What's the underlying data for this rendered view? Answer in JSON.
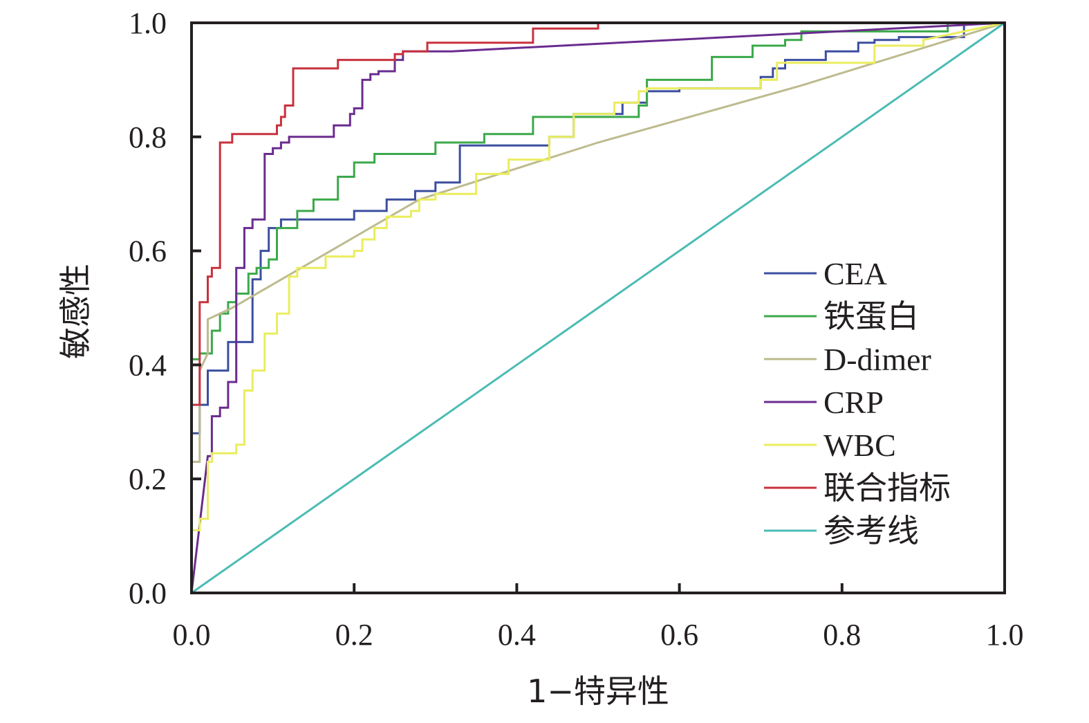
{
  "chart_data": {
    "type": "line",
    "title": "",
    "xlabel": "1−特异性",
    "ylabel": "敏感性",
    "xlim": [
      0,
      1
    ],
    "ylim": [
      0,
      1
    ],
    "xticks": [
      "0.0",
      "0.2",
      "0.4",
      "0.6",
      "0.8",
      "1.0"
    ],
    "yticks": [
      "0.0",
      "0.2",
      "0.4",
      "0.6",
      "0.8",
      "1.0"
    ],
    "grid": false,
    "legend_position": "bottom-right",
    "series": [
      {
        "name": "CEA",
        "color": "#3b4ea0",
        "x": [
          0,
          0,
          0.01,
          0.01,
          0.02,
          0.02,
          0.045,
          0.045,
          0.065,
          0.065,
          0.075,
          0.075,
          0.085,
          0.085,
          0.095,
          0.095,
          0.11,
          0.11,
          0.2,
          0.2,
          0.24,
          0.24,
          0.275,
          0.275,
          0.3,
          0.3,
          0.33,
          0.33,
          0.44,
          0.44,
          0.47,
          0.47,
          0.53,
          0.53,
          0.56,
          0.56,
          0.6,
          0.6,
          0.7,
          0.7,
          0.715,
          0.715,
          0.73,
          0.73,
          0.78,
          0.78,
          0.82,
          0.82,
          0.84,
          0.84,
          0.87,
          0.87,
          0.95,
          0.95,
          1.0
        ],
        "y": [
          0,
          0.28,
          0.28,
          0.33,
          0.33,
          0.39,
          0.39,
          0.44,
          0.44,
          0.44,
          0.44,
          0.55,
          0.55,
          0.6,
          0.6,
          0.64,
          0.64,
          0.655,
          0.655,
          0.67,
          0.67,
          0.69,
          0.69,
          0.705,
          0.705,
          0.72,
          0.72,
          0.785,
          0.785,
          0.8,
          0.8,
          0.84,
          0.84,
          0.86,
          0.86,
          0.88,
          0.88,
          0.885,
          0.885,
          0.905,
          0.905,
          0.92,
          0.92,
          0.935,
          0.935,
          0.95,
          0.95,
          0.965,
          0.965,
          0.97,
          0.97,
          0.975,
          0.975,
          1.0,
          1.0
        ]
      },
      {
        "name": "铁蛋白",
        "color": "#3aa94a",
        "x": [
          0,
          0,
          0.01,
          0.01,
          0.025,
          0.025,
          0.035,
          0.035,
          0.045,
          0.045,
          0.055,
          0.055,
          0.07,
          0.07,
          0.08,
          0.08,
          0.095,
          0.095,
          0.105,
          0.105,
          0.13,
          0.13,
          0.15,
          0.15,
          0.18,
          0.18,
          0.2,
          0.2,
          0.225,
          0.225,
          0.3,
          0.3,
          0.36,
          0.36,
          0.42,
          0.42,
          0.55,
          0.55,
          0.56,
          0.56,
          0.64,
          0.64,
          0.69,
          0.69,
          0.73,
          0.73,
          0.75,
          0.75,
          0.93,
          0.93,
          1.0
        ],
        "y": [
          0,
          0.41,
          0.41,
          0.42,
          0.42,
          0.46,
          0.46,
          0.49,
          0.49,
          0.51,
          0.51,
          0.525,
          0.525,
          0.56,
          0.56,
          0.57,
          0.57,
          0.585,
          0.585,
          0.64,
          0.64,
          0.67,
          0.67,
          0.69,
          0.69,
          0.73,
          0.73,
          0.755,
          0.755,
          0.77,
          0.77,
          0.79,
          0.79,
          0.805,
          0.805,
          0.835,
          0.835,
          0.855,
          0.855,
          0.9,
          0.9,
          0.94,
          0.94,
          0.96,
          0.96,
          0.97,
          0.97,
          0.985,
          0.985,
          1.0,
          1.0
        ]
      },
      {
        "name": "D-dimer",
        "color": "#bdbb8e",
        "x": [
          0,
          0,
          0.01,
          0.01,
          0.02,
          0.02,
          0.05,
          0.28,
          0.5,
          0.75,
          1.0
        ],
        "y": [
          0,
          0.23,
          0.23,
          0.39,
          0.42,
          0.48,
          0.5,
          0.69,
          0.79,
          0.89,
          1.0
        ]
      },
      {
        "name": "CRP",
        "color": "#6a2c8e",
        "x": [
          0,
          0.02,
          0.025,
          0.025,
          0.035,
          0.035,
          0.045,
          0.045,
          0.055,
          0.055,
          0.065,
          0.065,
          0.075,
          0.075,
          0.09,
          0.09,
          0.1,
          0.1,
          0.11,
          0.11,
          0.12,
          0.12,
          0.175,
          0.175,
          0.195,
          0.195,
          0.2,
          0.2,
          0.21,
          0.21,
          0.22,
          0.22,
          0.23,
          0.23,
          0.25,
          0.25,
          0.26,
          0.26,
          0.32,
          0.32,
          1.0
        ],
        "y": [
          0,
          0.24,
          0.24,
          0.31,
          0.31,
          0.325,
          0.325,
          0.37,
          0.37,
          0.57,
          0.57,
          0.64,
          0.64,
          0.655,
          0.655,
          0.77,
          0.77,
          0.78,
          0.78,
          0.79,
          0.79,
          0.8,
          0.8,
          0.82,
          0.82,
          0.84,
          0.84,
          0.85,
          0.85,
          0.9,
          0.9,
          0.91,
          0.91,
          0.915,
          0.915,
          0.935,
          0.935,
          0.95,
          0.95,
          0.95,
          1.0
        ]
      },
      {
        "name": "WBC",
        "color": "#eaed5d",
        "x": [
          0,
          0.01,
          0.01,
          0.02,
          0.02,
          0.025,
          0.025,
          0.055,
          0.055,
          0.065,
          0.065,
          0.075,
          0.075,
          0.09,
          0.09,
          0.105,
          0.105,
          0.12,
          0.12,
          0.13,
          0.13,
          0.165,
          0.165,
          0.2,
          0.2,
          0.21,
          0.21,
          0.225,
          0.225,
          0.24,
          0.24,
          0.27,
          0.27,
          0.28,
          0.28,
          0.3,
          0.3,
          0.35,
          0.35,
          0.39,
          0.39,
          0.44,
          0.44,
          0.47,
          0.47,
          0.52,
          0.52,
          0.55,
          0.55,
          0.56,
          0.56,
          0.7,
          0.7,
          0.72,
          0.72,
          0.84,
          0.84,
          0.9,
          0.9,
          1.0
        ],
        "y": [
          0.11,
          0.11,
          0.13,
          0.13,
          0.23,
          0.23,
          0.245,
          0.245,
          0.26,
          0.26,
          0.355,
          0.355,
          0.39,
          0.39,
          0.455,
          0.455,
          0.49,
          0.49,
          0.555,
          0.555,
          0.57,
          0.57,
          0.59,
          0.59,
          0.6,
          0.6,
          0.62,
          0.62,
          0.64,
          0.64,
          0.66,
          0.66,
          0.67,
          0.67,
          0.69,
          0.69,
          0.7,
          0.7,
          0.735,
          0.735,
          0.76,
          0.76,
          0.8,
          0.8,
          0.84,
          0.84,
          0.86,
          0.86,
          0.88,
          0.88,
          0.885,
          0.885,
          0.9,
          0.9,
          0.93,
          0.93,
          0.96,
          0.96,
          0.97,
          1.0
        ]
      },
      {
        "name": "联合指标",
        "color": "#c8313c",
        "x": [
          0,
          0,
          0.01,
          0.01,
          0.02,
          0.02,
          0.025,
          0.025,
          0.035,
          0.035,
          0.05,
          0.05,
          0.105,
          0.105,
          0.11,
          0.11,
          0.115,
          0.115,
          0.125,
          0.125,
          0.13,
          0.13,
          0.18,
          0.18,
          0.25,
          0.25,
          0.26,
          0.26,
          0.29,
          0.29,
          0.42,
          0.42,
          0.5,
          0.5,
          1.0
        ],
        "y": [
          0,
          0.33,
          0.33,
          0.51,
          0.51,
          0.555,
          0.555,
          0.57,
          0.57,
          0.79,
          0.79,
          0.805,
          0.805,
          0.82,
          0.82,
          0.835,
          0.835,
          0.855,
          0.855,
          0.92,
          0.92,
          0.92,
          0.92,
          0.935,
          0.935,
          0.945,
          0.945,
          0.95,
          0.95,
          0.965,
          0.965,
          0.99,
          0.99,
          1.0,
          1.0
        ]
      },
      {
        "name": "参考线",
        "color": "#4bbbb4",
        "x": [
          0,
          1
        ],
        "y": [
          0,
          1
        ]
      }
    ]
  }
}
